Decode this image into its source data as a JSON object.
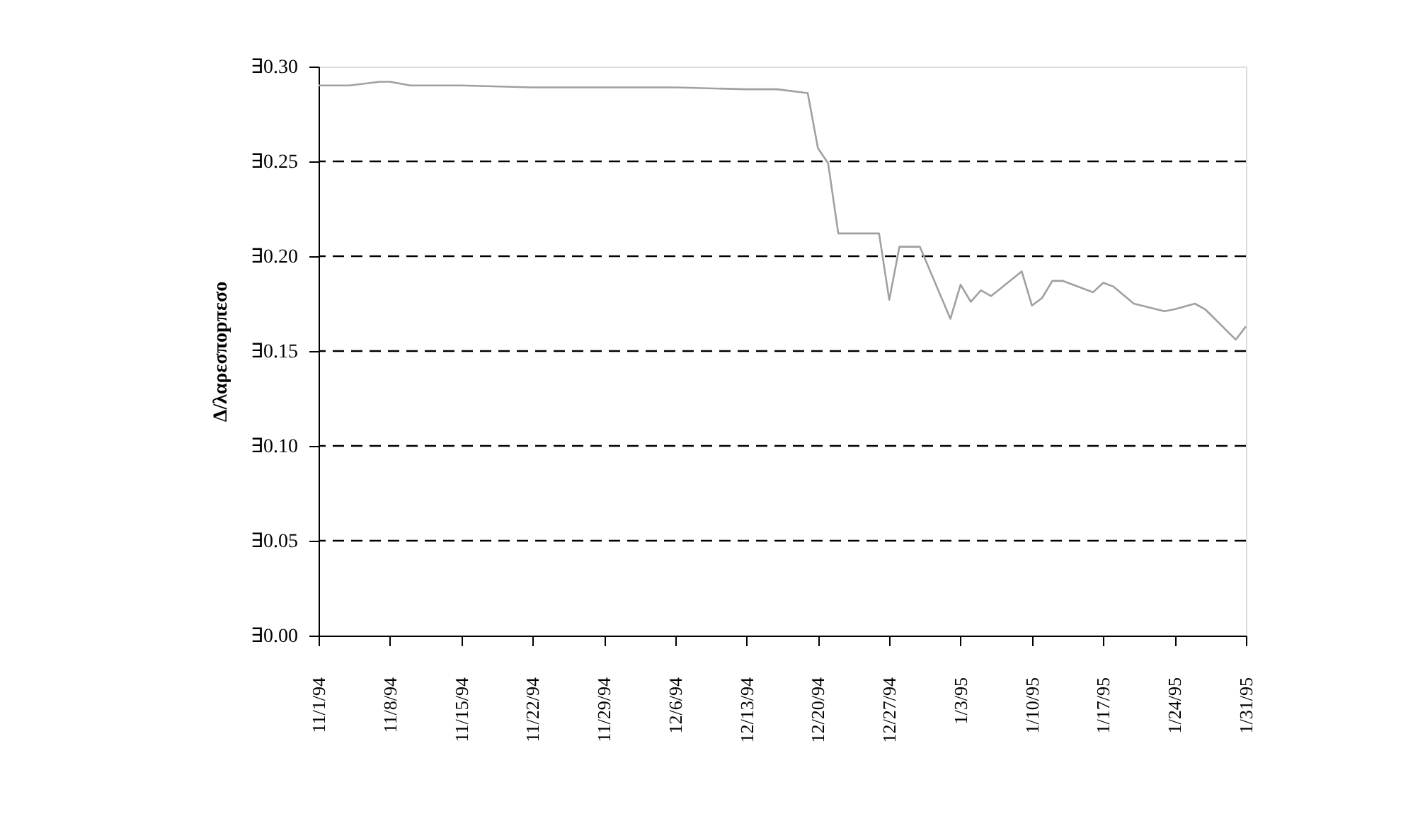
{
  "chart_data": {
    "type": "line",
    "ylabel": "Δ/λαρεσποpπεσο",
    "x": [
      "1994-11-01",
      "1994-11-04",
      "1994-11-07",
      "1994-11-08",
      "1994-11-10",
      "1994-11-15",
      "1994-11-22",
      "1994-11-29",
      "1994-12-06",
      "1994-12-13",
      "1994-12-16",
      "1994-12-19",
      "1994-12-20",
      "1994-12-21",
      "1994-12-22",
      "1994-12-26",
      "1994-12-27",
      "1994-12-28",
      "1994-12-30",
      "1995-01-02",
      "1995-01-03",
      "1995-01-04",
      "1995-01-05",
      "1995-01-06",
      "1995-01-09",
      "1995-01-10",
      "1995-01-11",
      "1995-01-12",
      "1995-01-13",
      "1995-01-16",
      "1995-01-17",
      "1995-01-18",
      "1995-01-20",
      "1995-01-23",
      "1995-01-24",
      "1995-01-26",
      "1995-01-27",
      "1995-01-30",
      "1995-01-31"
    ],
    "series": [
      {
        "color": "#a0a0a0",
        "values": [
          0.29,
          0.29,
          0.292,
          0.292,
          0.29,
          0.29,
          0.289,
          0.289,
          0.289,
          0.288,
          0.288,
          0.286,
          0.257,
          0.249,
          0.212,
          0.212,
          0.177,
          0.205,
          0.205,
          0.167,
          0.185,
          0.176,
          0.182,
          0.179,
          0.192,
          0.174,
          0.178,
          0.187,
          0.187,
          0.181,
          0.186,
          0.184,
          0.175,
          0.171,
          0.172,
          0.175,
          0.172,
          0.156,
          0.163
        ]
      }
    ],
    "xlim": [
      "1994-11-01",
      "1995-01-31"
    ],
    "xticks": [
      {
        "value": "1994-11-01",
        "label": "11/1/94"
      },
      {
        "value": "1994-11-08",
        "label": "11/8/94"
      },
      {
        "value": "1994-11-15",
        "label": "11/15/94"
      },
      {
        "value": "1994-11-22",
        "label": "11/22/94"
      },
      {
        "value": "1994-11-29",
        "label": "11/29/94"
      },
      {
        "value": "1994-12-06",
        "label": "12/6/94"
      },
      {
        "value": "1994-12-13",
        "label": "12/13/94"
      },
      {
        "value": "1994-12-20",
        "label": "12/20/94"
      },
      {
        "value": "1994-12-27",
        "label": "12/27/94"
      },
      {
        "value": "1995-01-03",
        "label": "1/3/95"
      },
      {
        "value": "1995-01-10",
        "label": "1/10/95"
      },
      {
        "value": "1995-01-17",
        "label": "1/17/95"
      },
      {
        "value": "1995-01-24",
        "label": "1/24/95"
      },
      {
        "value": "1995-01-31",
        "label": "1/31/95"
      }
    ],
    "ylim": [
      0,
      0.3
    ],
    "yticks": [
      {
        "value": 0,
        "label": "∃0.00"
      },
      {
        "value": 0.05,
        "label": "∃0.05"
      },
      {
        "value": 0.1,
        "label": "∃0.10"
      },
      {
        "value": 0.15,
        "label": "∃0.15"
      },
      {
        "value": 0.2,
        "label": "∃0.20"
      },
      {
        "value": 0.25,
        "label": "∃0.25"
      },
      {
        "value": 0.3,
        "label": "∃0.30"
      }
    ],
    "grid": "y",
    "marker": "none",
    "line_style": "solid"
  }
}
